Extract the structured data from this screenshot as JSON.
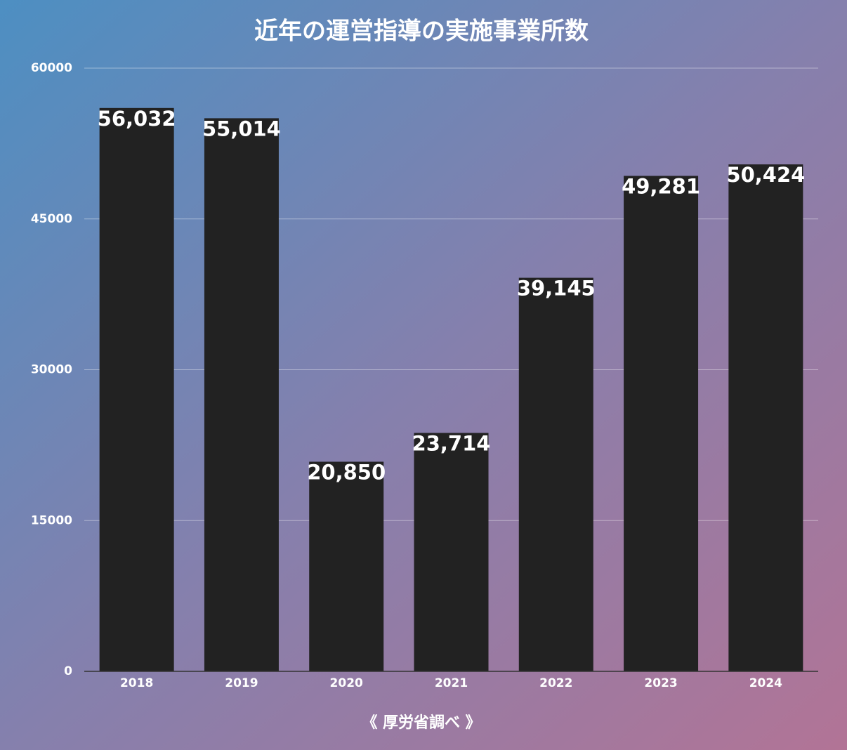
{
  "chart_data": {
    "type": "bar",
    "title": "近年の運営指導の実施事業所数",
    "categories": [
      "2018",
      "2019",
      "2020",
      "2021",
      "2022",
      "2023",
      "2024"
    ],
    "values": [
      56032,
      55014,
      20850,
      23714,
      39145,
      49281,
      50424
    ],
    "value_labels": [
      "56,032",
      "55,014",
      "20,850",
      "23,714",
      "39,145",
      "49,281",
      "50,424"
    ],
    "color": "#222222",
    "ylim": [
      0,
      60000
    ],
    "yticks": [
      0,
      15000,
      30000,
      45000,
      60000
    ],
    "grid": true,
    "footnote": "《 厚労省調べ 》"
  }
}
